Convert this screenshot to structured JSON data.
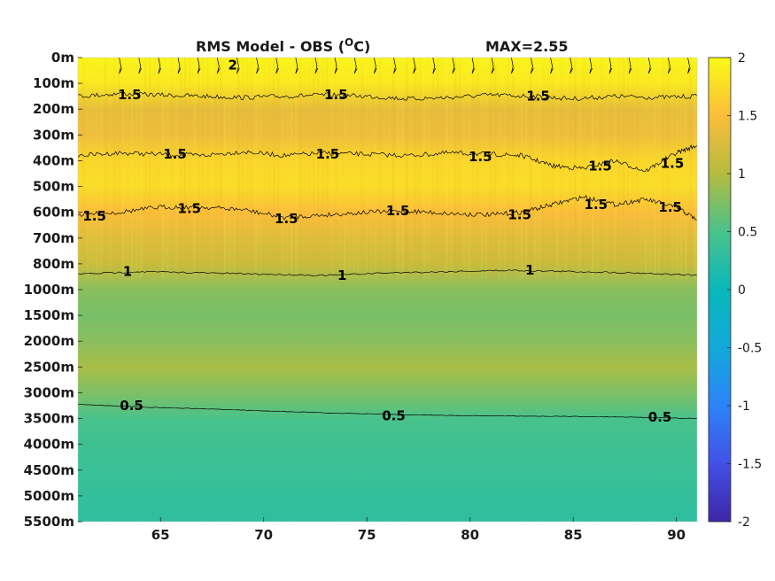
{
  "chart_data": {
    "type": "heatmap",
    "title": "RMS Model - OBS (",
    "title_unit": "O",
    "title_unit_suffix": "C)",
    "max_label": "MAX=2.55",
    "x_ticks": [
      65,
      70,
      75,
      80,
      85,
      90
    ],
    "x_range": [
      61,
      91
    ],
    "y_tick_labels": [
      "0m",
      "100m",
      "200m",
      "300m",
      "400m",
      "500m",
      "600m",
      "700m",
      "800m",
      "1000m",
      "1500m",
      "2000m",
      "2500m",
      "3000m",
      "3500m",
      "4000m",
      "4500m",
      "5000m",
      "5500m"
    ],
    "colorbar": {
      "range": [
        -2,
        2
      ],
      "ticks": [
        "2",
        "1.5",
        "1",
        "0.5",
        "0",
        "-0.5",
        "-1",
        "-1.5",
        "-2"
      ]
    },
    "colormap": "parula",
    "depth_profile": [
      {
        "depth": "0m",
        "value": 1.95
      },
      {
        "depth": "100m",
        "value": 1.85
      },
      {
        "depth": "200m",
        "value": 1.35
      },
      {
        "depth": "300m",
        "value": 1.4
      },
      {
        "depth": "400m",
        "value": 1.7
      },
      {
        "depth": "500m",
        "value": 1.75
      },
      {
        "depth": "600m",
        "value": 1.5
      },
      {
        "depth": "700m",
        "value": 1.3
      },
      {
        "depth": "800m",
        "value": 1.15
      },
      {
        "depth": "1000m",
        "value": 0.8
      },
      {
        "depth": "1500m",
        "value": 0.72
      },
      {
        "depth": "2000m",
        "value": 0.8
      },
      {
        "depth": "2500m",
        "value": 0.95
      },
      {
        "depth": "3000m",
        "value": 0.75
      },
      {
        "depth": "3500m",
        "value": 0.5
      },
      {
        "depth": "4000m",
        "value": 0.42
      },
      {
        "depth": "4500m",
        "value": 0.38
      },
      {
        "depth": "5000m",
        "value": 0.33
      },
      {
        "depth": "5500m",
        "value": 0.3
      }
    ],
    "contour_labels": [
      {
        "text": "2",
        "x": 68.5,
        "depth_index": 0.3
      },
      {
        "text": "1.5",
        "x": 63.5,
        "depth_index": 1.45
      },
      {
        "text": "1.5",
        "x": 73.5,
        "depth_index": 1.45
      },
      {
        "text": "1.5",
        "x": 83.3,
        "depth_index": 1.5
      },
      {
        "text": "1.5",
        "x": 65.7,
        "depth_index": 3.75
      },
      {
        "text": "1.5",
        "x": 73.1,
        "depth_index": 3.75
      },
      {
        "text": "1.5",
        "x": 80.5,
        "depth_index": 3.85
      },
      {
        "text": "1.5",
        "x": 86.3,
        "depth_index": 4.2
      },
      {
        "text": "1.5",
        "x": 89.8,
        "depth_index": 4.1
      },
      {
        "text": "1.5",
        "x": 61.8,
        "depth_index": 6.15
      },
      {
        "text": "1.5",
        "x": 66.4,
        "depth_index": 5.85
      },
      {
        "text": "1.5",
        "x": 71.1,
        "depth_index": 6.25
      },
      {
        "text": "1.5",
        "x": 76.5,
        "depth_index": 5.95
      },
      {
        "text": "1.5",
        "x": 82.4,
        "depth_index": 6.1
      },
      {
        "text": "1.5",
        "x": 86.1,
        "depth_index": 5.7
      },
      {
        "text": "1.5",
        "x": 89.7,
        "depth_index": 5.8
      },
      {
        "text": "1",
        "x": 63.4,
        "depth_index": 8.3
      },
      {
        "text": "1",
        "x": 73.8,
        "depth_index": 8.45
      },
      {
        "text": "1",
        "x": 82.9,
        "depth_index": 8.25
      },
      {
        "text": "0.5",
        "x": 63.6,
        "depth_index": 13.5
      },
      {
        "text": "0.5",
        "x": 76.3,
        "depth_index": 13.9
      },
      {
        "text": "0.5",
        "x": 89.2,
        "depth_index": 13.95
      }
    ],
    "contour_lines": [
      {
        "level": 1.5,
        "x": [
          61,
          63,
          65,
          67,
          69,
          71,
          73,
          75,
          77,
          79,
          81,
          83,
          85,
          87,
          89,
          91
        ],
        "depth_index": [
          1.5,
          1.4,
          1.45,
          1.5,
          1.55,
          1.5,
          1.45,
          1.5,
          1.6,
          1.55,
          1.45,
          1.5,
          1.6,
          1.5,
          1.55,
          1.5
        ]
      },
      {
        "level": 1.5,
        "x": [
          61,
          63,
          65,
          67,
          69,
          71,
          73,
          75,
          77,
          79,
          81,
          82.5,
          84,
          85.5,
          87,
          88.5,
          90,
          91
        ],
        "depth_index": [
          3.8,
          3.7,
          3.75,
          3.8,
          3.65,
          3.8,
          3.7,
          3.75,
          3.8,
          3.7,
          3.75,
          3.8,
          4.2,
          4.3,
          4.0,
          4.4,
          3.7,
          3.4
        ]
      },
      {
        "level": 1.5,
        "x": [
          61,
          63,
          65,
          67,
          69,
          71,
          73,
          75,
          77,
          79,
          81,
          82.5,
          84,
          85.5,
          87,
          88.5,
          90,
          91
        ],
        "depth_index": [
          6.1,
          6.0,
          5.8,
          5.8,
          5.9,
          6.2,
          6.1,
          6.0,
          5.95,
          6.05,
          6.1,
          6.0,
          5.7,
          5.4,
          5.7,
          5.5,
          5.8,
          6.3
        ]
      },
      {
        "level": 1.0,
        "x": [
          61,
          64,
          67,
          70,
          73,
          76,
          79,
          82,
          85,
          88,
          91
        ],
        "depth_index": [
          8.4,
          8.3,
          8.35,
          8.4,
          8.45,
          8.35,
          8.3,
          8.25,
          8.3,
          8.35,
          8.45
        ]
      },
      {
        "level": 0.5,
        "x": [
          61,
          64,
          67,
          70,
          73,
          76,
          79,
          82,
          85,
          88,
          91
        ],
        "depth_index": [
          13.45,
          13.55,
          13.62,
          13.7,
          13.78,
          13.84,
          13.88,
          13.9,
          13.92,
          13.95,
          14.0
        ]
      }
    ]
  }
}
